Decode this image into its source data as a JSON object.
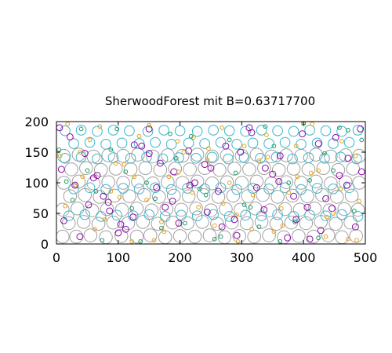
{
  "chart_data": {
    "type": "scatter",
    "title": "SherwoodForest mit B=0.63717700",
    "xlabel": "",
    "ylabel": "",
    "xlim": [
      0,
      500
    ],
    "ylim": [
      0,
      200
    ],
    "x_ticks": [
      "0",
      "100",
      "200",
      "300",
      "400",
      "500"
    ],
    "y_ticks": [
      "0",
      "50",
      "100",
      "150",
      "200"
    ],
    "x_tick_values": [
      0,
      100,
      200,
      300,
      400,
      500
    ],
    "y_tick_values": [
      0,
      50,
      100,
      150,
      200
    ],
    "grid": false,
    "legend": "none",
    "marker": "circle",
    "series": [
      {
        "color": "#a0a0a0",
        "radius": 10.5,
        "x": [
          10,
          32,
          55,
          80,
          105,
          130,
          152,
          176,
          200,
          224,
          248,
          272,
          296,
          320,
          344,
          368,
          392,
          416,
          440,
          462,
          485,
          20,
          44,
          68,
          92,
          116,
          140,
          164,
          188,
          212,
          236,
          260,
          284,
          308,
          332,
          356,
          380,
          404,
          428,
          452,
          476,
          10,
          34,
          58,
          82,
          106,
          130,
          154,
          178,
          202,
          226,
          250,
          274,
          298,
          322,
          346,
          370,
          394,
          418,
          442,
          466,
          488,
          22,
          46,
          70,
          94,
          118,
          142,
          166,
          190,
          214,
          238,
          262,
          286,
          310,
          334,
          358,
          382,
          406,
          430,
          454,
          478,
          12,
          36,
          60,
          84,
          108,
          132,
          156,
          180,
          204,
          228,
          252,
          276,
          300,
          324,
          348,
          372,
          396,
          420,
          444,
          468,
          490,
          24,
          48,
          72,
          96,
          120,
          144,
          168,
          192,
          216,
          240,
          264,
          288,
          312,
          336,
          360,
          384,
          408,
          432,
          456,
          480,
          12,
          36,
          60,
          84,
          108,
          132,
          156,
          180,
          204,
          228,
          252,
          276,
          300,
          324,
          348,
          372,
          396,
          420,
          444,
          468,
          490
        ],
        "y": [
          12,
          12,
          14,
          11,
          13,
          12,
          14,
          11,
          13,
          12,
          14,
          11,
          13,
          12,
          14,
          11,
          13,
          12,
          14,
          11,
          13,
          34,
          36,
          33,
          35,
          34,
          36,
          33,
          35,
          34,
          36,
          33,
          35,
          34,
          36,
          33,
          35,
          34,
          36,
          33,
          35,
          56,
          58,
          55,
          57,
          56,
          58,
          55,
          57,
          56,
          58,
          55,
          57,
          56,
          58,
          55,
          57,
          56,
          58,
          55,
          57,
          56,
          78,
          80,
          77,
          79,
          78,
          80,
          77,
          79,
          78,
          80,
          77,
          79,
          78,
          80,
          77,
          79,
          78,
          80,
          77,
          79,
          100,
          102,
          99,
          101,
          100,
          102,
          99,
          101,
          100,
          102,
          99,
          101,
          100,
          102,
          99,
          101,
          100,
          102,
          99,
          101,
          100,
          122,
          124,
          121,
          123,
          122,
          124,
          121,
          123,
          122,
          124,
          121,
          123,
          122,
          124,
          121,
          123,
          122,
          124,
          121,
          123,
          144,
          146,
          143,
          145,
          144,
          146,
          143,
          145,
          144,
          146,
          143,
          145,
          144,
          146,
          143,
          145,
          144,
          146,
          143,
          145,
          144
        ]
      },
      {
        "color": "#3ab6cc",
        "radius": 8,
        "x": [
          14,
          40,
          66,
          92,
          118,
          148,
          174,
          200,
          228,
          254,
          280,
          306,
          332,
          358,
          384,
          410,
          436,
          462,
          488,
          28,
          54,
          80,
          106,
          134,
          160,
          186,
          214,
          240,
          266,
          292,
          318,
          344,
          370,
          396,
          422,
          448,
          474,
          14,
          40,
          66,
          92,
          120,
          146,
          172,
          198,
          226,
          252,
          278,
          304,
          330,
          356,
          382,
          408,
          434,
          460,
          486,
          28,
          54,
          80,
          108,
          134,
          160,
          186,
          212,
          240,
          266,
          292,
          318,
          344,
          370,
          396,
          422,
          448,
          474,
          20,
          46,
          72,
          98,
          124,
          150,
          176,
          202,
          228,
          254,
          280,
          306,
          332,
          358,
          384,
          410,
          436,
          462,
          488
        ],
        "y": [
          185,
          186,
          184,
          186,
          185,
          184,
          186,
          185,
          184,
          186,
          185,
          184,
          186,
          185,
          184,
          186,
          185,
          184,
          186,
          164,
          166,
          163,
          165,
          164,
          166,
          163,
          165,
          164,
          166,
          163,
          165,
          164,
          166,
          163,
          165,
          164,
          166,
          140,
          142,
          139,
          141,
          140,
          142,
          139,
          141,
          140,
          142,
          139,
          141,
          140,
          142,
          139,
          141,
          140,
          142,
          139,
          90,
          92,
          89,
          91,
          90,
          92,
          89,
          91,
          90,
          92,
          89,
          91,
          90,
          92,
          89,
          91,
          90,
          92,
          46,
          48,
          45,
          47,
          46,
          48,
          45,
          47,
          46,
          48,
          45,
          47,
          46,
          48,
          45,
          47,
          46,
          48,
          45
        ]
      },
      {
        "color": "#8b0aa5",
        "radius": 5,
        "x": [
          5,
          22,
          46,
          66,
          84,
          104,
          126,
          150,
          168,
          190,
          216,
          244,
          268,
          292,
          316,
          338,
          360,
          384,
          406,
          428,
          452,
          472,
          494,
          12,
          38,
          60,
          86,
          112,
          138,
          162,
          188,
          214,
          240,
          262,
          288,
          312,
          336,
          362,
          388,
          410,
          436,
          458,
          484,
          8,
          30,
          52,
          76,
          100,
          124,
          150,
          176,
          198,
          224,
          250,
          274,
          298,
          324,
          350,
          374,
          398,
          424,
          446,
          470,
          492
        ],
        "y": [
          190,
          175,
          148,
          112,
          68,
          32,
          162,
          148,
          132,
          118,
          96,
          52,
          28,
          14,
          182,
          124,
          102,
          78,
          60,
          22,
          174,
          140,
          118,
          38,
          12,
          108,
          54,
          24,
          160,
          92,
          70,
          152,
          130,
          86,
          40,
          190,
          56,
          144,
          40,
          8,
          74,
          112,
          28,
          122,
          96,
          64,
          78,
          18,
          44,
          188,
          60,
          34,
          100,
          124,
          160,
          150,
          92,
          114,
          10,
          180,
          164,
          58,
          96,
          188
        ]
      },
      {
        "color": "#e8a317",
        "radius": 3,
        "x": [
          18,
          38,
          62,
          88,
          110,
          134,
          158,
          182,
          206,
          230,
          256,
          280,
          304,
          328,
          352,
          376,
          400,
          424,
          448,
          472,
          490,
          6,
          30,
          54,
          78,
          102,
          126,
          150,
          174,
          198,
          222,
          246,
          270,
          294,
          318,
          342,
          366,
          390,
          414,
          438,
          462,
          486,
          14,
          42,
          70,
          96,
          122,
          146,
          170,
          196,
          220,
          244,
          268,
          292,
          316,
          340,
          364,
          388,
          412,
          436,
          460,
          484
        ],
        "y": [
          196,
          150,
          24,
          86,
          130,
          176,
          6,
          110,
          150,
          60,
          30,
          100,
          160,
          136,
          20,
          84,
          196,
          120,
          50,
          8,
          70,
          144,
          96,
          170,
          40,
          76,
          110,
          194,
          20,
          118,
          174,
          156,
          66,
          4,
          80,
          142,
          30,
          110,
          196,
          44,
          168,
          6,
          62,
          110,
          192,
          132,
          4,
          72,
          36,
          168,
          84,
          138,
          190,
          48,
          24,
          178,
          58,
          160,
          116,
          12,
          90,
          144
        ]
      },
      {
        "color": "#1a9a6a",
        "radius": 3,
        "x": [
          4,
          26,
          50,
          74,
          98,
          122,
          146,
          170,
          194,
          218,
          242,
          266,
          290,
          314,
          338,
          362,
          386,
          410,
          434,
          458,
          482,
          16,
          40,
          64,
          88,
          112,
          136,
          160,
          184,
          208,
          232,
          256,
          280,
          304,
          328,
          352,
          376,
          400,
          424,
          448,
          472,
          494
        ],
        "y": [
          154,
          72,
          120,
          6,
          188,
          58,
          100,
          26,
          140,
          176,
          80,
          12,
          116,
          60,
          192,
          4,
          36,
          104,
          148,
          190,
          54,
          102,
          188,
          86,
          154,
          118,
          4,
          74,
          180,
          34,
          90,
          8,
          170,
          64,
          28,
          160,
          100,
          198,
          10,
          120,
          186,
          170
        ]
      }
    ]
  }
}
